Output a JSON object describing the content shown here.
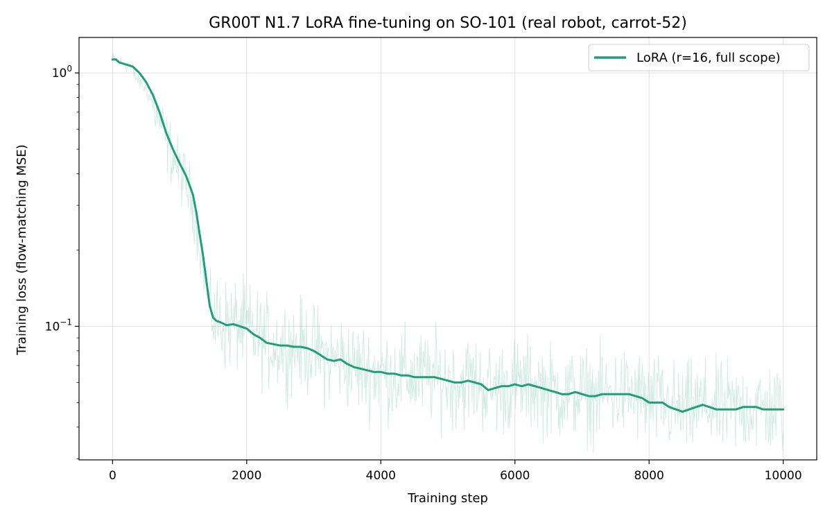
{
  "chart_data": {
    "type": "line",
    "title": "GR00T N1.7 LoRA fine-tuning on SO-101 (real robot, carrot-52)",
    "xlabel": "Training step",
    "ylabel": "Training loss (flow-matching MSE)",
    "xlim": [
      -500,
      10500
    ],
    "ylim": [
      0.0297,
      1.38
    ],
    "yscale": "log",
    "grid": true,
    "legend_position": "top-right",
    "x_ticks": [
      0,
      2000,
      4000,
      6000,
      8000,
      10000
    ],
    "x_tick_labels": [
      "0",
      "2000",
      "4000",
      "6000",
      "8000",
      "10000"
    ],
    "y_ticks": [
      0.1,
      1.0
    ],
    "y_tick_labels": [
      {
        "base": "10",
        "exp": "−1"
      },
      {
        "base": "10",
        "exp": "0"
      }
    ],
    "colors": {
      "series": "#1f9e78",
      "raw": "#1f9e78",
      "grid": "#e0e0e0",
      "axis": "#000000"
    },
    "series": [
      {
        "name": "LoRA (r=16, full scope)",
        "style": "smoothed",
        "x": [
          0,
          50,
          100,
          200,
          300,
          400,
          500,
          600,
          700,
          800,
          900,
          1000,
          1100,
          1200,
          1250,
          1300,
          1350,
          1400,
          1450,
          1500,
          1550,
          1600,
          1700,
          1800,
          1900,
          2000,
          2100,
          2200,
          2300,
          2400,
          2500,
          2600,
          2700,
          2800,
          2900,
          3000,
          3100,
          3200,
          3300,
          3400,
          3500,
          3600,
          3700,
          3800,
          3900,
          4000,
          4100,
          4200,
          4300,
          4400,
          4500,
          4600,
          4700,
          4800,
          4900,
          5000,
          5100,
          5200,
          5300,
          5400,
          5500,
          5600,
          5700,
          5800,
          5900,
          6000,
          6100,
          6200,
          6300,
          6400,
          6500,
          6600,
          6700,
          6800,
          6900,
          7000,
          7100,
          7200,
          7300,
          7400,
          7500,
          7600,
          7700,
          7800,
          7900,
          8000,
          8100,
          8200,
          8300,
          8400,
          8500,
          8600,
          8700,
          8800,
          8900,
          9000,
          9100,
          9200,
          9300,
          9400,
          9500,
          9600,
          9700,
          9800,
          9900,
          10000
        ],
        "y": [
          1.13,
          1.13,
          1.1,
          1.08,
          1.06,
          1.0,
          0.92,
          0.82,
          0.7,
          0.58,
          0.5,
          0.44,
          0.39,
          0.33,
          0.28,
          0.23,
          0.19,
          0.15,
          0.12,
          0.108,
          0.105,
          0.104,
          0.101,
          0.102,
          0.1,
          0.098,
          0.093,
          0.09,
          0.086,
          0.085,
          0.084,
          0.084,
          0.083,
          0.083,
          0.082,
          0.08,
          0.077,
          0.074,
          0.073,
          0.074,
          0.071,
          0.069,
          0.068,
          0.067,
          0.066,
          0.066,
          0.065,
          0.065,
          0.064,
          0.064,
          0.063,
          0.063,
          0.063,
          0.063,
          0.062,
          0.061,
          0.06,
          0.06,
          0.061,
          0.06,
          0.059,
          0.056,
          0.057,
          0.058,
          0.058,
          0.059,
          0.058,
          0.059,
          0.058,
          0.057,
          0.056,
          0.055,
          0.054,
          0.054,
          0.055,
          0.054,
          0.053,
          0.053,
          0.054,
          0.054,
          0.054,
          0.054,
          0.054,
          0.053,
          0.052,
          0.05,
          0.05,
          0.05,
          0.048,
          0.047,
          0.046,
          0.047,
          0.048,
          0.049,
          0.048,
          0.047,
          0.047,
          0.047,
          0.047,
          0.048,
          0.048,
          0.048,
          0.047,
          0.047,
          0.047,
          0.047
        ]
      }
    ]
  }
}
